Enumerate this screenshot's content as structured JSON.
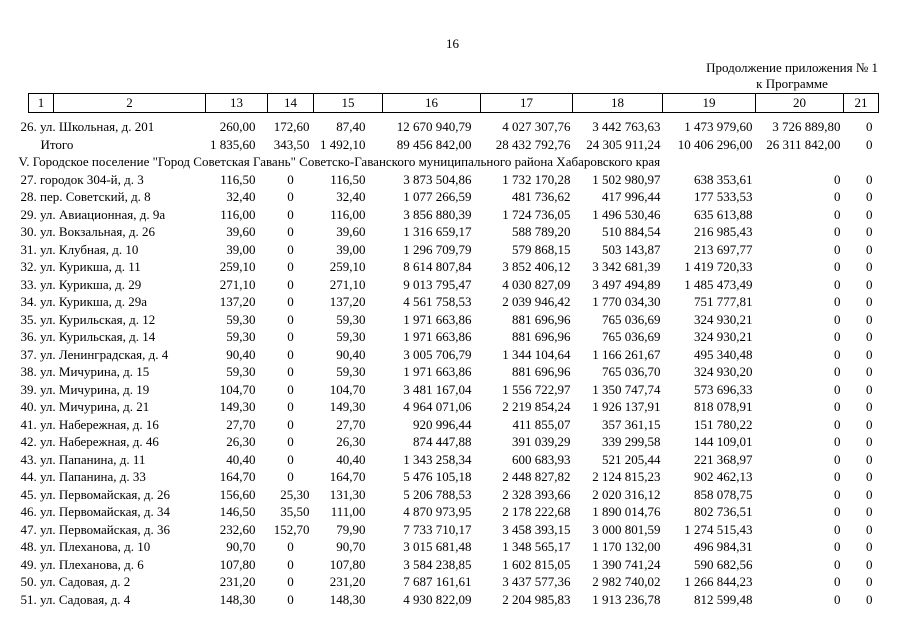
{
  "page": {
    "number": "16",
    "continuation_line1": "Продолжение приложения № 1",
    "continuation_line2": "к Программе"
  },
  "table": {
    "columns": [
      "1",
      "2",
      "13",
      "14",
      "15",
      "16",
      "17",
      "18",
      "19",
      "20",
      "21"
    ],
    "rows": [
      {
        "type": "data",
        "label": "26. ул. Школьная, д. 201",
        "values": [
          "260,00",
          "172,60",
          "87,40",
          "12 670 940,79",
          "4 027 307,76",
          "3 442 763,63",
          "1 473 979,60",
          "3 726 889,80",
          "0"
        ]
      },
      {
        "type": "total",
        "label": "Итого",
        "values": [
          "1 835,60",
          "343,50",
          "1 492,10",
          "89 456 842,00",
          "28 432 792,76",
          "24 305 911,24",
          "10 406 296,00",
          "26 311 842,00",
          "0"
        ]
      },
      {
        "type": "section",
        "label": "V. Городское поселение \"Город Советская Гавань\" Советско-Гаванского муниципального района Хабаровского края"
      },
      {
        "type": "data",
        "label": "27. городок 304-й, д. 3",
        "values": [
          "116,50",
          "0",
          "116,50",
          "3 873 504,86",
          "1 732 170,28",
          "1 502 980,97",
          "638 353,61",
          "0",
          "0"
        ]
      },
      {
        "type": "data",
        "label": "28. пер. Советский, д. 8",
        "values": [
          "32,40",
          "0",
          "32,40",
          "1 077 266,59",
          "481 736,62",
          "417 996,44",
          "177 533,53",
          "0",
          "0"
        ]
      },
      {
        "type": "data",
        "label": "29. ул. Авиационная, д. 9а",
        "values": [
          "116,00",
          "0",
          "116,00",
          "3 856 880,39",
          "1 724 736,05",
          "1 496 530,46",
          "635 613,88",
          "0",
          "0"
        ]
      },
      {
        "type": "data",
        "label": "30. ул. Вокзальная, д. 26",
        "values": [
          "39,60",
          "0",
          "39,60",
          "1 316 659,17",
          "588 789,20",
          "510 884,54",
          "216 985,43",
          "0",
          "0"
        ]
      },
      {
        "type": "data",
        "label": "31. ул. Клубная, д. 10",
        "values": [
          "39,00",
          "0",
          "39,00",
          "1 296 709,79",
          "579 868,15",
          "503 143,87",
          "213 697,77",
          "0",
          "0"
        ]
      },
      {
        "type": "data",
        "label": "32. ул. Курикша, д. 11",
        "values": [
          "259,10",
          "0",
          "259,10",
          "8 614 807,84",
          "3 852 406,12",
          "3 342 681,39",
          "1 419 720,33",
          "0",
          "0"
        ]
      },
      {
        "type": "data",
        "label": "33. ул. Курикша, д. 29",
        "values": [
          "271,10",
          "0",
          "271,10",
          "9 013 795,47",
          "4 030 827,09",
          "3 497 494,89",
          "1 485 473,49",
          "0",
          "0"
        ]
      },
      {
        "type": "data",
        "label": "34. ул. Курикша, д. 29а",
        "values": [
          "137,20",
          "0",
          "137,20",
          "4 561 758,53",
          "2 039 946,42",
          "1 770 034,30",
          "751 777,81",
          "0",
          "0"
        ]
      },
      {
        "type": "data",
        "label": "35. ул. Курильская, д. 12",
        "values": [
          "59,30",
          "0",
          "59,30",
          "1 971 663,86",
          "881 696,96",
          "765 036,69",
          "324 930,21",
          "0",
          "0"
        ]
      },
      {
        "type": "data",
        "label": "36. ул. Курильская, д. 14",
        "values": [
          "59,30",
          "0",
          "59,30",
          "1 971 663,86",
          "881 696,96",
          "765 036,69",
          "324 930,21",
          "0",
          "0"
        ]
      },
      {
        "type": "data",
        "label": "37. ул. Ленинградская, д. 4",
        "values": [
          "90,40",
          "0",
          "90,40",
          "3 005 706,79",
          "1 344 104,64",
          "1 166 261,67",
          "495 340,48",
          "0",
          "0"
        ]
      },
      {
        "type": "data",
        "label": "38. ул. Мичурина, д. 15",
        "values": [
          "59,30",
          "0",
          "59,30",
          "1 971 663,86",
          "881 696,96",
          "765 036,70",
          "324 930,20",
          "0",
          "0"
        ]
      },
      {
        "type": "data",
        "label": "39. ул. Мичурина, д. 19",
        "values": [
          "104,70",
          "0",
          "104,70",
          "3 481 167,04",
          "1 556 722,97",
          "1 350 747,74",
          "573 696,33",
          "0",
          "0"
        ]
      },
      {
        "type": "data",
        "label": "40. ул. Мичурина, д. 21",
        "values": [
          "149,30",
          "0",
          "149,30",
          "4 964 071,06",
          "2 219 854,24",
          "1 926 137,91",
          "818 078,91",
          "0",
          "0"
        ]
      },
      {
        "type": "data",
        "label": "41. ул. Набережная, д. 16",
        "values": [
          "27,70",
          "0",
          "27,70",
          "920 996,44",
          "411 855,07",
          "357 361,15",
          "151 780,22",
          "0",
          "0"
        ]
      },
      {
        "type": "data",
        "label": "42. ул. Набережная, д. 46",
        "values": [
          "26,30",
          "0",
          "26,30",
          "874 447,88",
          "391 039,29",
          "339 299,58",
          "144 109,01",
          "0",
          "0"
        ]
      },
      {
        "type": "data",
        "label": "43. ул. Папанина, д. 11",
        "values": [
          "40,40",
          "0",
          "40,40",
          "1 343 258,34",
          "600 683,93",
          "521 205,44",
          "221 368,97",
          "0",
          "0"
        ]
      },
      {
        "type": "data",
        "label": "44. ул. Папанина, д. 33",
        "values": [
          "164,70",
          "0",
          "164,70",
          "5 476 105,18",
          "2 448 827,82",
          "2 124 815,23",
          "902 462,13",
          "0",
          "0"
        ]
      },
      {
        "type": "data",
        "label": "45. ул. Первомайская, д. 26",
        "values": [
          "156,60",
          "25,30",
          "131,30",
          "5 206 788,53",
          "2 328 393,66",
          "2 020 316,12",
          "858 078,75",
          "0",
          "0"
        ]
      },
      {
        "type": "data",
        "label": "46. ул. Первомайская, д. 34",
        "values": [
          "146,50",
          "35,50",
          "111,00",
          "4 870 973,95",
          "2 178 222,68",
          "1 890 014,76",
          "802 736,51",
          "0",
          "0"
        ]
      },
      {
        "type": "data",
        "label": "47. ул. Первомайская, д. 36",
        "values": [
          "232,60",
          "152,70",
          "79,90",
          "7 733 710,17",
          "3 458 393,15",
          "3 000 801,59",
          "1 274 515,43",
          "0",
          "0"
        ]
      },
      {
        "type": "data",
        "label": "48. ул. Плеханова, д. 10",
        "values": [
          "90,70",
          "0",
          "90,70",
          "3 015 681,48",
          "1 348 565,17",
          "1 170 132,00",
          "496 984,31",
          "0",
          "0"
        ]
      },
      {
        "type": "data",
        "label": "49. ул. Плеханова, д. 6",
        "values": [
          "107,80",
          "0",
          "107,80",
          "3 584 238,85",
          "1 602 815,05",
          "1 390 741,24",
          "590 682,56",
          "0",
          "0"
        ]
      },
      {
        "type": "data",
        "label": "50. ул. Садовая, д. 2",
        "values": [
          "231,20",
          "0",
          "231,20",
          "7 687 161,61",
          "3 437 577,36",
          "2 982 740,02",
          "1 266 844,23",
          "0",
          "0"
        ]
      },
      {
        "type": "data",
        "label": "51. ул. Садовая, д. 4",
        "values": [
          "148,30",
          "0",
          "148,30",
          "4 930 822,09",
          "2 204 985,83",
          "1 913 236,78",
          "812 599,48",
          "0",
          "0"
        ]
      }
    ]
  }
}
